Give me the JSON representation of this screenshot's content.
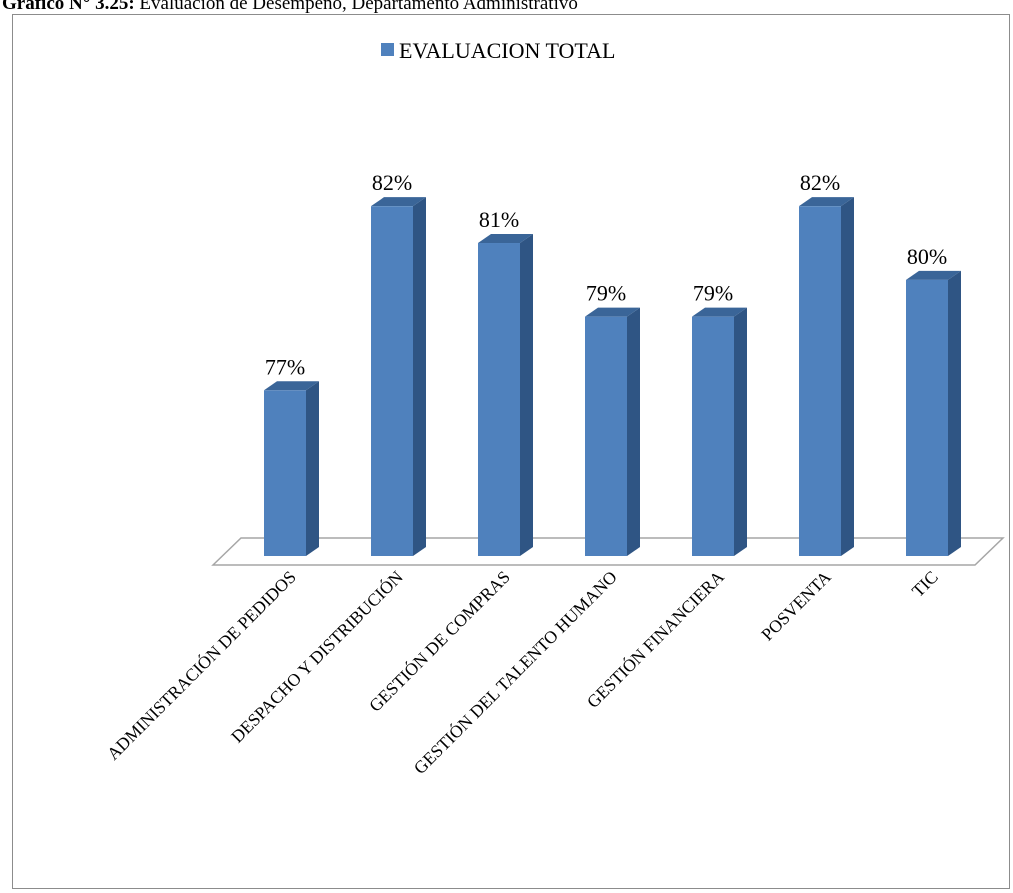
{
  "caption": {
    "prefix": "Gráfico N° 3.25:",
    "text": " Evaluación de Desempeño, Departamento Administrativo"
  },
  "colors": {
    "bar_front": "#4f81bd",
    "bar_side": "#2f5584",
    "bar_top": "#3a6598",
    "floor_line": "#a6a6a6",
    "frame": "#8c8c8c"
  },
  "chart_data": {
    "type": "bar",
    "title": "",
    "xlabel": "",
    "ylabel": "",
    "legend": "top-center",
    "grid": false,
    "three_d": true,
    "ylim": [
      72.5,
      83.2
    ],
    "categories": [
      "ADMINISTRACIÓN DE PEDIDOS",
      "DESPACHO Y DISTRIBUCIÓN",
      "GESTIÓN DE COMPRAS",
      "GESTIÓN DEL TALENTO HUMANO",
      "GESTIÓN FINANCIERA",
      "POSVENTA",
      "TIC"
    ],
    "series": [
      {
        "name": "EVALUACION TOTAL",
        "values": [
          77,
          82,
          81,
          79,
          79,
          82,
          80
        ],
        "labels": [
          "77%",
          "82%",
          "81%",
          "79%",
          "79%",
          "82%",
          "80%"
        ]
      }
    ]
  }
}
